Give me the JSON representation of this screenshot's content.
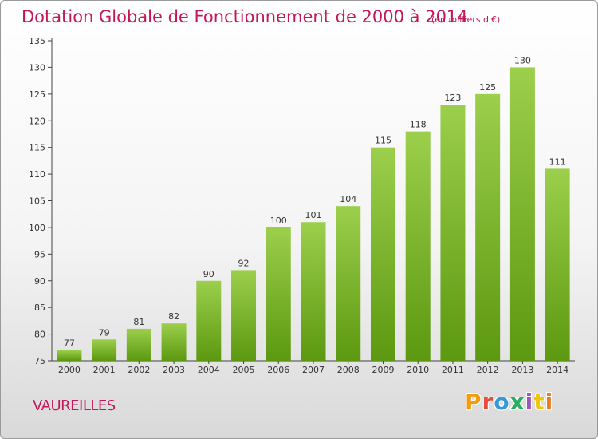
{
  "header": {
    "title": "Dotation Globale de Fonctionnement de 2000 à 2014",
    "unit": "(en milliers d'€)"
  },
  "footer": {
    "commune": "VAUREILLES",
    "logo_letters": [
      "P",
      "r",
      "o",
      "x",
      "i",
      "t",
      "i"
    ],
    "logo_colors": [
      "#f39c12",
      "#e74c3c",
      "#3498db",
      "#27ae60",
      "#9b59b6",
      "#f1c40f",
      "#e67e22"
    ]
  },
  "colors": {
    "bar_top": "#9ccf4c",
    "bar_bottom": "#5c9810",
    "accent": "#c2185b"
  },
  "chart_data": {
    "type": "bar",
    "categories": [
      "2000",
      "2001",
      "2002",
      "2003",
      "2004",
      "2005",
      "2006",
      "2007",
      "2008",
      "2009",
      "2010",
      "2011",
      "2012",
      "2013",
      "2014"
    ],
    "values": [
      77,
      79,
      81,
      82,
      90,
      92,
      100,
      101,
      104,
      115,
      118,
      123,
      125,
      130,
      111
    ],
    "ylim": [
      75,
      135
    ],
    "yticks": [
      75,
      80,
      85,
      90,
      95,
      100,
      105,
      110,
      115,
      120,
      125,
      130,
      135
    ],
    "grid": false,
    "legend": "none"
  }
}
